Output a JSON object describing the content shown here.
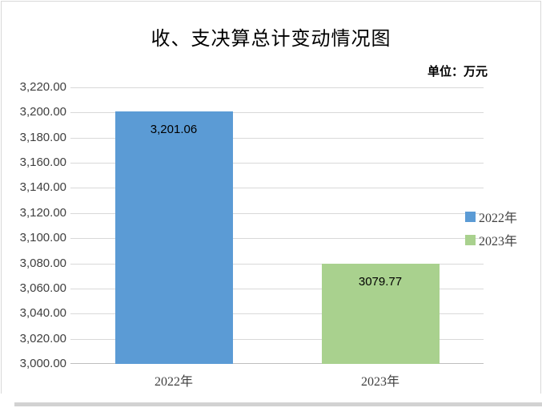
{
  "chart_data": {
    "type": "bar",
    "title": "收、支决算总计变动情况图",
    "unit_label": "单位：万元",
    "categories": [
      "2022年",
      "2023年"
    ],
    "values": [
      3201.06,
      3079.77
    ],
    "value_labels": [
      "3,201.06",
      "3079.77"
    ],
    "bar_colors": [
      "#5B9BD5",
      "#A9D18E"
    ],
    "legend": {
      "position": "right",
      "items": [
        {
          "label": "2022年",
          "color": "#5B9BD5"
        },
        {
          "label": "2023年",
          "color": "#A9D18E"
        }
      ]
    },
    "y_axis": {
      "min": 3000,
      "max": 3220,
      "tick_step": 20,
      "tick_labels": [
        "3,000.00",
        "3,020.00",
        "3,040.00",
        "3,060.00",
        "3,080.00",
        "3,100.00",
        "3,120.00",
        "3,140.00",
        "3,160.00",
        "3,180.00",
        "3,200.00",
        "3,220.00"
      ]
    },
    "xlabel": "",
    "ylabel": "",
    "grid": true,
    "grid_color": "#D9D9D9",
    "axis_line_color": "#BFBFBF",
    "background_color": "#FFFFFF"
  }
}
